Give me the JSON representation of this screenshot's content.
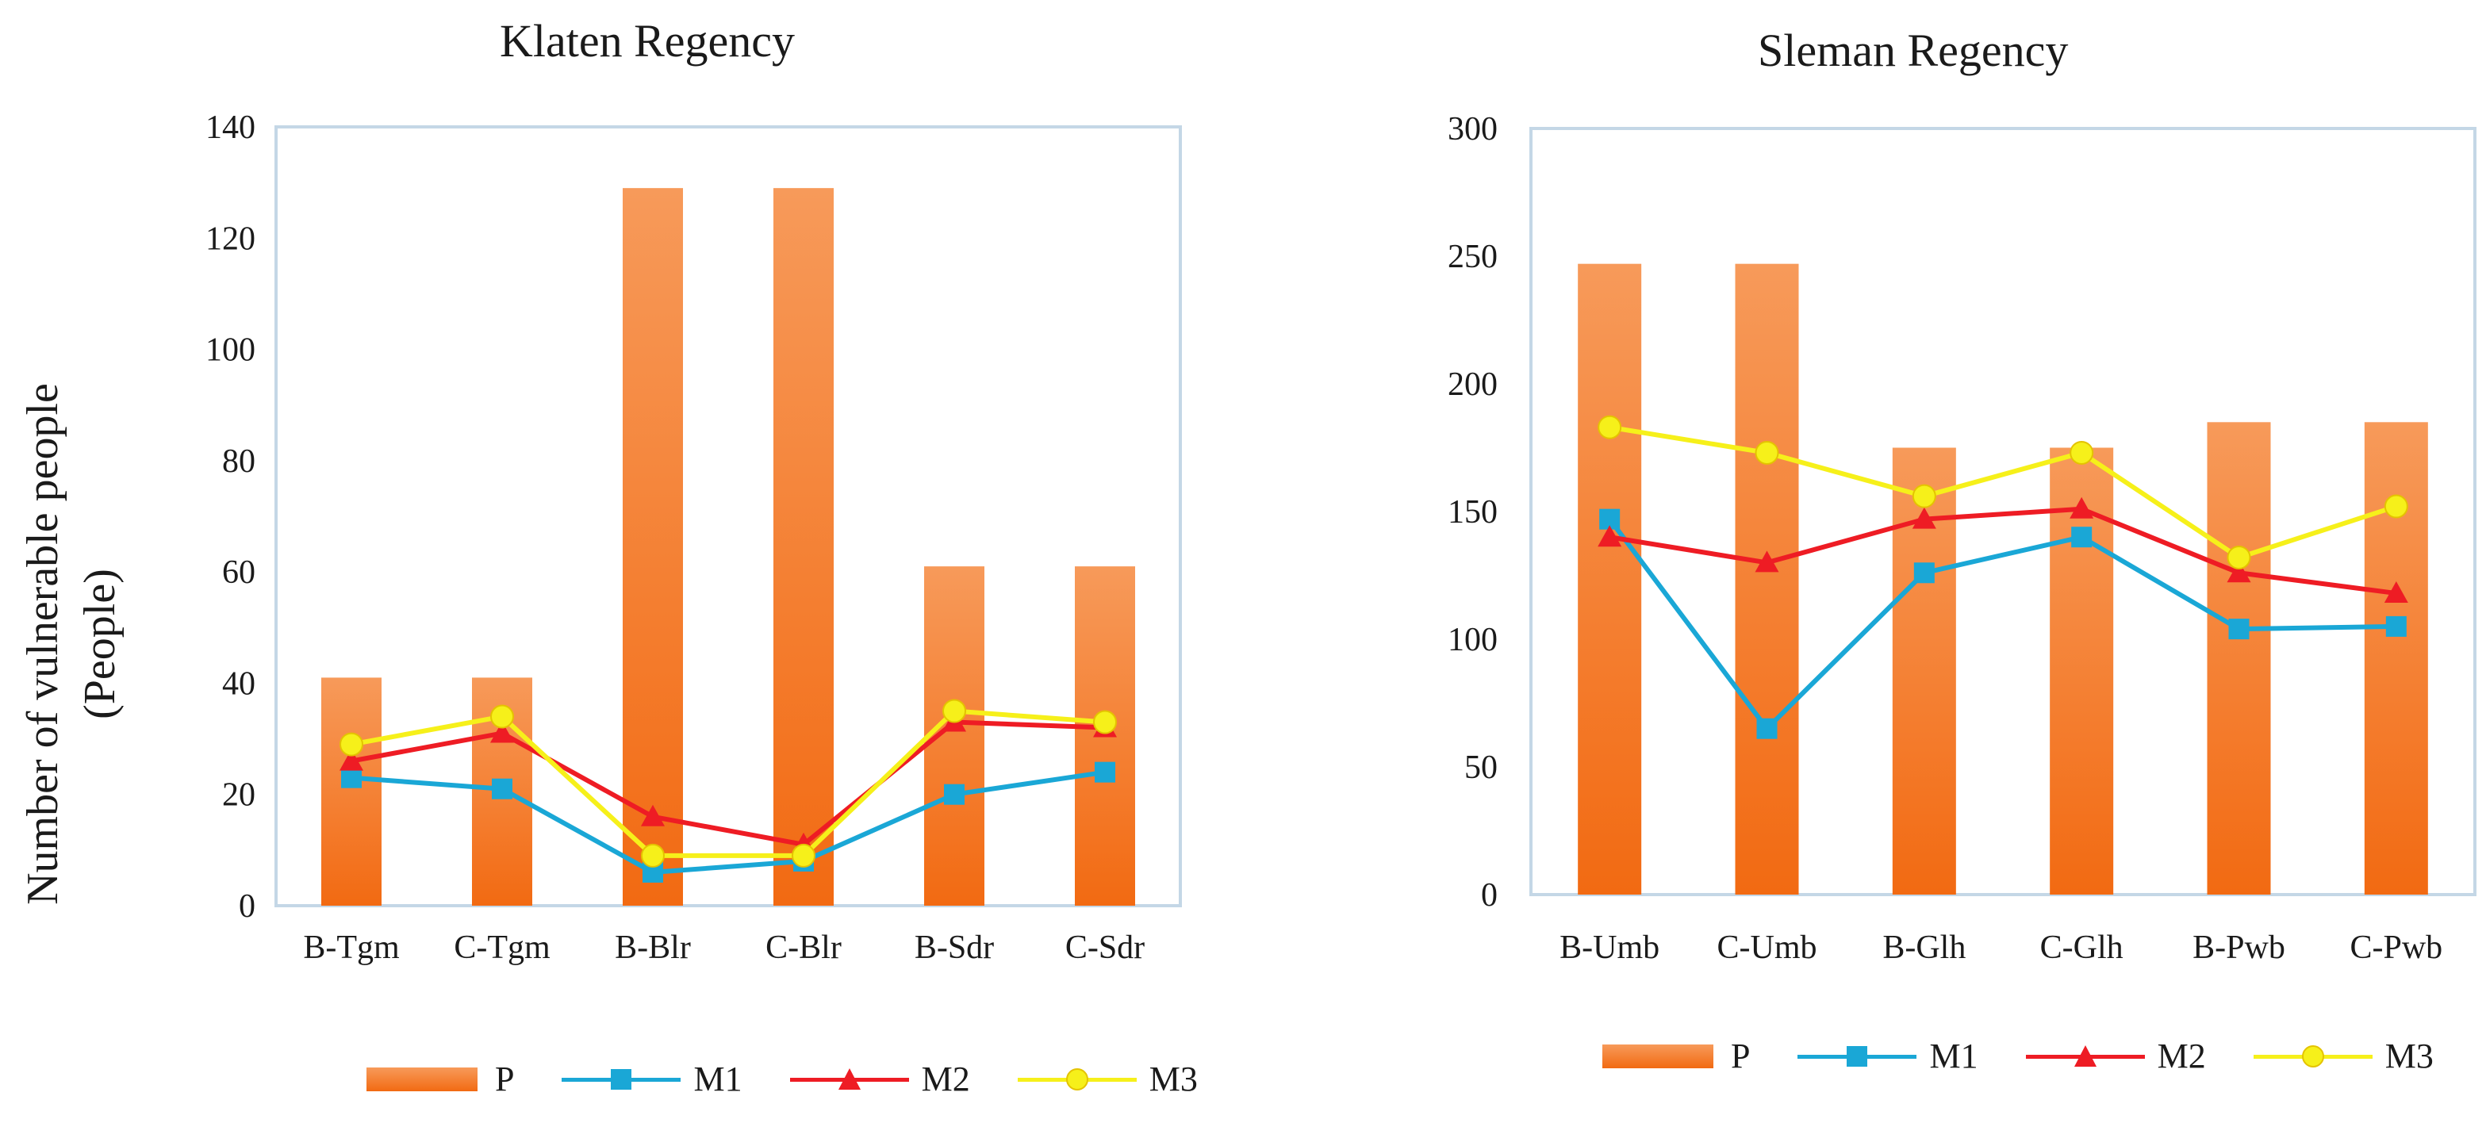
{
  "colors": {
    "bar_top": "#f79a5a",
    "bar_bottom": "#f26a12",
    "M1": "#1aa7d6",
    "M2": "#ee1c24",
    "M3": "#f6f01a",
    "M3_stroke": "#e4c300",
    "frame": "#c4d7e6"
  },
  "legend": {
    "P": "P",
    "M1": "M1",
    "M2": "M2",
    "M3": "M3"
  },
  "chart_data": [
    {
      "type": "bar",
      "title": "Klaten Regency",
      "ylabel_line1": "Number of vulnerable people",
      "ylabel_line2": "(People)",
      "xlabel": "",
      "ylim": [
        0,
        140
      ],
      "yticks": [
        0,
        20,
        40,
        60,
        80,
        100,
        120,
        140
      ],
      "categories": [
        "B-Tgm",
        "C-Tgm",
        "B-Blr",
        "C-Blr",
        "B-Sdr",
        "C-Sdr"
      ],
      "series": [
        {
          "name": "P",
          "kind": "bar",
          "values": [
            41,
            41,
            129,
            129,
            61,
            61
          ]
        },
        {
          "name": "M1",
          "kind": "line",
          "marker": "square",
          "values": [
            23,
            21,
            6,
            8,
            20,
            24
          ]
        },
        {
          "name": "M2",
          "kind": "line",
          "marker": "triangle",
          "values": [
            26,
            31,
            16,
            11,
            33,
            32
          ]
        },
        {
          "name": "M3",
          "kind": "line",
          "marker": "circle",
          "values": [
            29,
            34,
            9,
            9,
            35,
            33
          ]
        }
      ],
      "legend_position": "bottom"
    },
    {
      "type": "bar",
      "title": "Sleman Regency",
      "xlabel": "",
      "ylim": [
        0,
        300
      ],
      "yticks": [
        0,
        50,
        100,
        150,
        200,
        250,
        300
      ],
      "categories": [
        "B-Umb",
        "C-Umb",
        "B-Glh",
        "C-Glh",
        "B-Pwb",
        "C-Pwb"
      ],
      "series": [
        {
          "name": "P",
          "kind": "bar",
          "values": [
            247,
            247,
            175,
            175,
            185,
            185
          ]
        },
        {
          "name": "M1",
          "kind": "line",
          "marker": "square",
          "values": [
            147,
            65,
            126,
            140,
            104,
            105
          ]
        },
        {
          "name": "M2",
          "kind": "line",
          "marker": "triangle",
          "values": [
            140,
            130,
            147,
            151,
            126,
            118
          ]
        },
        {
          "name": "M3",
          "kind": "line",
          "marker": "circle",
          "values": [
            183,
            173,
            156,
            173,
            132,
            152
          ]
        }
      ],
      "legend_position": "bottom"
    }
  ]
}
